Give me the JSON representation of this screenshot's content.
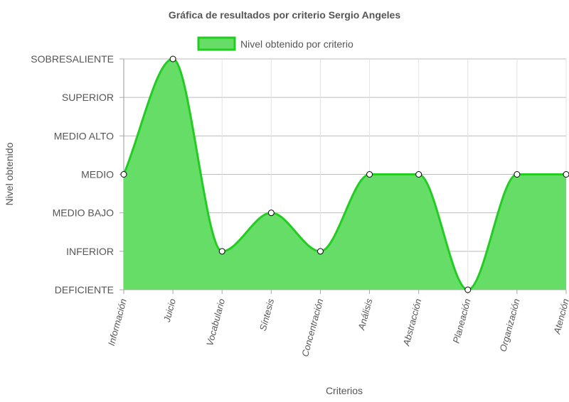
{
  "chart_data": {
    "type": "area",
    "title": "Gráfica de resultados por criterio Sergio Angeles",
    "xlabel": "Criterios",
    "ylabel": "Nivel obtenido",
    "levels": [
      "DEFICIENTE",
      "INFERIOR",
      "MEDIO BAJO",
      "MEDIO",
      "MEDIO ALTO",
      "SUPERIOR",
      "SOBRESALIENTE"
    ],
    "categories": [
      "Información",
      "Juicio",
      "Vocabulario",
      "Síntesis",
      "Concentración",
      "Análisis",
      "Abstracción",
      "Planeación",
      "Organización",
      "Atención"
    ],
    "series": [
      {
        "name": "Nivel obtenido por criterio",
        "values": [
          3,
          6,
          1,
          2,
          1,
          3,
          3,
          0,
          3,
          3
        ],
        "fill": "#66dd66",
        "stroke": "#22cc22"
      }
    ],
    "ylim": [
      0,
      6
    ],
    "legend": "top-center",
    "grid": true
  }
}
